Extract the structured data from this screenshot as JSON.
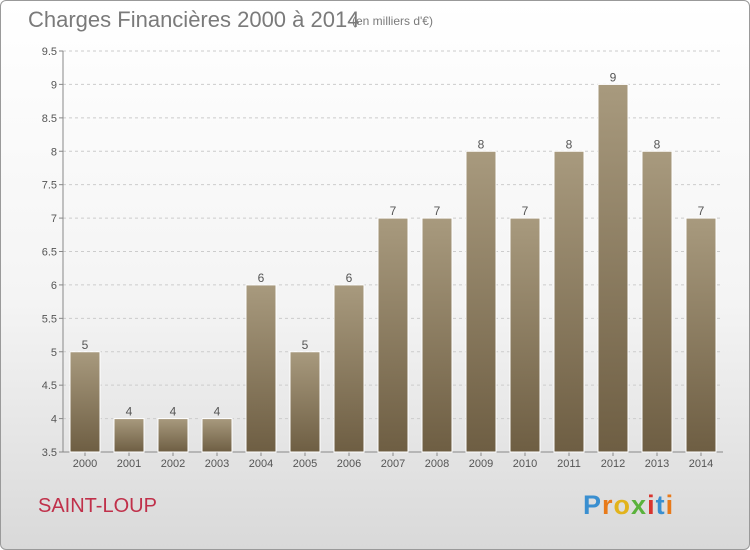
{
  "title": "Charges Financières 2000 à 2014",
  "subtitle": "(en milliers d'€)",
  "place": "SAINT-LOUP",
  "logo": {
    "letters": [
      "P",
      "r",
      "o",
      "x",
      "i",
      "t",
      "i"
    ],
    "colors": [
      "#3a8fd0",
      "#e87a1a",
      "#e2b31c",
      "#5ab23c",
      "#d8342f",
      "#3a8fd0",
      "#e87a1a"
    ]
  },
  "colors": {
    "bar_top": "#a89a7e",
    "bar_bottom": "#6e5e43",
    "grid": "#cccccc",
    "axis": "#888888"
  },
  "chart_data": {
    "type": "bar",
    "categories": [
      "2000",
      "2001",
      "2002",
      "2003",
      "2004",
      "2005",
      "2006",
      "2007",
      "2008",
      "2009",
      "2010",
      "2011",
      "2012",
      "2013",
      "2014"
    ],
    "values": [
      5,
      4,
      4,
      4,
      6,
      5,
      6,
      7,
      7,
      8,
      7,
      8,
      9,
      8,
      7
    ],
    "value_labels": [
      "5",
      "4",
      "4",
      "4",
      "6",
      "5",
      "6",
      "7",
      "7",
      "8",
      "7",
      "8",
      "9",
      "8",
      "7"
    ],
    "ylim": [
      3.5,
      9.5
    ],
    "yticks": [
      3.5,
      4,
      4.5,
      5,
      5.5,
      6,
      6.5,
      7,
      7.5,
      8,
      8.5,
      9,
      9.5
    ],
    "ytick_labels": [
      "3.5",
      "4",
      "4.5",
      "5",
      "5.5",
      "6",
      "6.5",
      "7",
      "7.5",
      "8",
      "8.5",
      "9",
      "9.5"
    ],
    "grid": true
  }
}
